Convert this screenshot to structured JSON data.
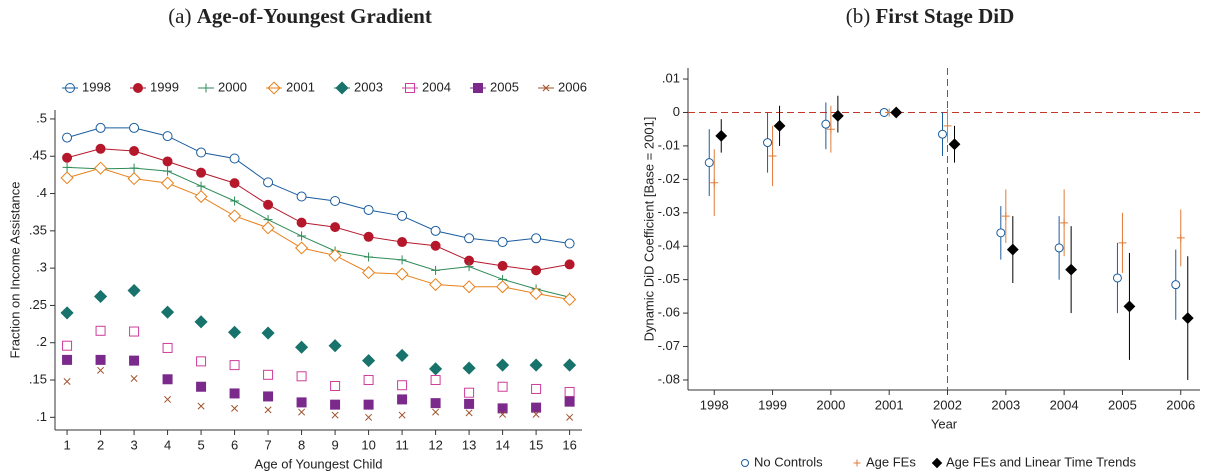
{
  "chart_data": [
    {
      "type": "line",
      "panel": "(a)",
      "title": "Age-of-Youngest Gradient",
      "x_label": "Age of Youngest Child",
      "y_label": "Fraction on Income Assistance",
      "x": [
        1,
        2,
        3,
        4,
        5,
        6,
        7,
        8,
        9,
        10,
        11,
        12,
        13,
        14,
        15,
        16
      ],
      "xlim": [
        0.64,
        16.37
      ],
      "xticks": [
        1,
        2,
        3,
        4,
        5,
        6,
        7,
        8,
        9,
        10,
        11,
        12,
        13,
        14,
        15,
        16
      ],
      "ylim": [
        0.083,
        0.512
      ],
      "yticks": [
        {
          "value": 0.1,
          "label": ".1"
        },
        {
          "value": 0.15,
          "label": ".15"
        },
        {
          "value": 0.2,
          "label": ".2"
        },
        {
          "value": 0.25,
          "label": ".25"
        },
        {
          "value": 0.3,
          "label": ".3"
        },
        {
          "value": 0.35,
          "label": ".35"
        },
        {
          "value": 0.4,
          "label": ".4"
        },
        {
          "value": 0.45,
          "label": ".45"
        },
        {
          "value": 0.5,
          "label": ".5"
        }
      ],
      "legend": "top",
      "series": [
        {
          "name": "1998",
          "color": "#1a5c9e",
          "marker": "circle-open",
          "line": true,
          "values": [
            0.475,
            0.488,
            0.488,
            0.477,
            0.455,
            0.447,
            0.415,
            0.396,
            0.39,
            0.378,
            0.37,
            0.35,
            0.34,
            0.335,
            0.34,
            0.333
          ]
        },
        {
          "name": "1999",
          "color": "#b5182b",
          "marker": "circle",
          "line": true,
          "values": [
            0.448,
            0.46,
            0.457,
            0.443,
            0.428,
            0.414,
            0.385,
            0.361,
            0.355,
            0.342,
            0.335,
            0.33,
            0.31,
            0.303,
            0.297,
            0.305
          ]
        },
        {
          "name": "2000",
          "color": "#2e8b57",
          "marker": "plus",
          "line": true,
          "values": [
            0.435,
            0.433,
            0.434,
            0.43,
            0.41,
            0.39,
            0.365,
            0.343,
            0.323,
            0.315,
            0.311,
            0.297,
            0.302,
            0.285,
            0.272,
            0.261
          ]
        },
        {
          "name": "2001",
          "color": "#e8801a",
          "marker": "diamond-open",
          "line": true,
          "values": [
            0.421,
            0.434,
            0.42,
            0.414,
            0.396,
            0.37,
            0.354,
            0.327,
            0.317,
            0.294,
            0.292,
            0.278,
            0.275,
            0.275,
            0.266,
            0.258
          ]
        },
        {
          "name": "2003",
          "color": "#17736b",
          "marker": "diamond",
          "line": false,
          "values": [
            0.24,
            0.262,
            0.27,
            0.241,
            0.228,
            0.214,
            0.213,
            0.194,
            0.196,
            0.176,
            0.183,
            0.165,
            0.166,
            0.17,
            0.17,
            0.17
          ]
        },
        {
          "name": "2004",
          "color": "#cc3d9a",
          "marker": "square-open",
          "line": false,
          "values": [
            0.196,
            0.216,
            0.215,
            0.193,
            0.175,
            0.17,
            0.157,
            0.155,
            0.142,
            0.15,
            0.143,
            0.15,
            0.133,
            0.141,
            0.138,
            0.134
          ]
        },
        {
          "name": "2005",
          "color": "#7b2a8c",
          "marker": "square",
          "line": false,
          "values": [
            0.177,
            0.177,
            0.176,
            0.151,
            0.141,
            0.132,
            0.128,
            0.12,
            0.117,
            0.117,
            0.124,
            0.119,
            0.118,
            0.112,
            0.113,
            0.121
          ]
        },
        {
          "name": "2006",
          "color": "#a0522d",
          "marker": "x",
          "line": false,
          "values": [
            0.148,
            0.163,
            0.152,
            0.124,
            0.115,
            0.112,
            0.11,
            0.107,
            0.103,
            0.1,
            0.103,
            0.107,
            0.106,
            0.104,
            0.104,
            0.1
          ]
        }
      ]
    },
    {
      "type": "errorbar",
      "panel": "(b)",
      "title": "First Stage DiD",
      "x_label": "Year",
      "y_label": "Dynamic DiD Coefficient [Base = 2001]",
      "x": [
        1998,
        1999,
        2000,
        2001,
        2002,
        2003,
        2004,
        2005,
        2006
      ],
      "xlim": [
        1997.55,
        2006.33
      ],
      "xticks": [
        1998,
        1999,
        2000,
        2001,
        2002,
        2003,
        2004,
        2005,
        2006
      ],
      "ylim": [
        -0.083,
        0.0133
      ],
      "yticks": [
        {
          "value": 0.01,
          "label": ".01"
        },
        0,
        {
          "value": -0.01,
          "label": "-.01"
        },
        {
          "value": -0.02,
          "label": "-.02"
        },
        {
          "value": -0.03,
          "label": "-.03"
        },
        {
          "value": -0.04,
          "label": "-.04"
        },
        {
          "value": -0.05,
          "label": "-.05"
        },
        {
          "value": -0.06,
          "label": "-.06"
        },
        {
          "value": -0.07,
          "label": "-.07"
        },
        {
          "value": -0.08,
          "label": "-.08"
        }
      ],
      "vline": 2002,
      "hline": 0,
      "ref_color": "#c0392b",
      "legend": "bottom",
      "series": [
        {
          "name": "No Controls",
          "color": "#1a5c9e",
          "marker": "circle-open",
          "values": [
            -0.015,
            -0.009,
            -0.0035,
            0,
            -0.0065,
            -0.036,
            -0.0405,
            -0.0495,
            -0.0515
          ],
          "lower": [
            -0.025,
            -0.018,
            -0.011,
            null,
            -0.013,
            -0.044,
            -0.05,
            -0.06,
            -0.062
          ],
          "upper": [
            -0.005,
            0,
            0.003,
            null,
            0,
            -0.028,
            -0.031,
            -0.039,
            -0.041
          ]
        },
        {
          "name": "Age FEs",
          "color": "#e07b39",
          "marker": "plus",
          "values": [
            -0.021,
            -0.013,
            -0.005,
            0,
            -0.004,
            -0.031,
            -0.033,
            -0.039,
            -0.0375
          ],
          "lower": [
            -0.031,
            -0.022,
            -0.012,
            null,
            -0.009,
            -0.039,
            -0.043,
            -0.048,
            -0.046
          ],
          "upper": [
            -0.011,
            -0.004,
            0.002,
            null,
            0.001,
            -0.023,
            -0.023,
            -0.03,
            -0.029
          ]
        },
        {
          "name": "Age FEs and Linear Time Trends",
          "color": "#000000",
          "marker": "diamond",
          "values": [
            -0.007,
            -0.004,
            -0.001,
            0,
            -0.0095,
            -0.041,
            -0.047,
            -0.058,
            -0.0615
          ],
          "lower": [
            -0.012,
            -0.01,
            -0.006,
            null,
            -0.015,
            -0.051,
            -0.06,
            -0.074,
            -0.08
          ],
          "upper": [
            -0.002,
            0.002,
            0.005,
            null,
            -0.004,
            -0.031,
            -0.034,
            -0.042,
            -0.043
          ]
        }
      ]
    }
  ]
}
